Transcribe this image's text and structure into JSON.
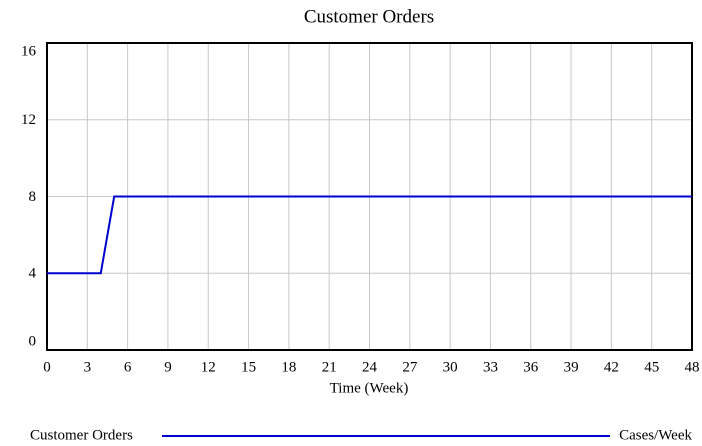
{
  "chart_data": {
    "type": "line",
    "title": "Customer Orders",
    "x_label": "Time (Week)",
    "x": [
      0,
      4,
      5,
      48
    ],
    "series": [
      {
        "name": "Customer Orders",
        "color": "#0000cc",
        "values": [
          4,
          4,
          8,
          8
        ],
        "units": "Cases/Week"
      }
    ],
    "xlim": [
      0,
      48
    ],
    "xticks": [
      0,
      3,
      6,
      9,
      12,
      15,
      18,
      21,
      24,
      27,
      30,
      33,
      36,
      39,
      42,
      45,
      48
    ],
    "ylim": [
      0,
      16
    ],
    "yticks": [
      0,
      4,
      8,
      12,
      16
    ],
    "grid": true
  }
}
